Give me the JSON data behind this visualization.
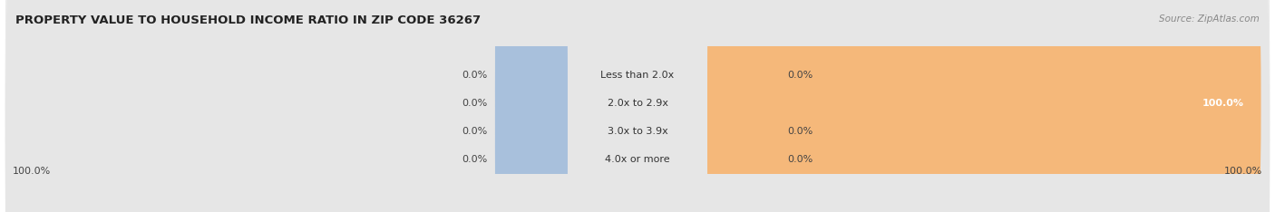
{
  "title": "PROPERTY VALUE TO HOUSEHOLD INCOME RATIO IN ZIP CODE 36267",
  "source": "Source: ZipAtlas.com",
  "categories": [
    "Less than 2.0x",
    "2.0x to 2.9x",
    "3.0x to 3.9x",
    "4.0x or more"
  ],
  "without_mortgage": [
    0.0,
    0.0,
    0.0,
    0.0
  ],
  "with_mortgage": [
    0.0,
    100.0,
    0.0,
    0.0
  ],
  "left_labels": [
    "0.0%",
    "0.0%",
    "0.0%",
    "0.0%"
  ],
  "right_labels": [
    "0.0%",
    "100.0%",
    "0.0%",
    "0.0%"
  ],
  "bottom_left": "100.0%",
  "bottom_right": "100.0%",
  "color_without": "#a8c0dc",
  "color_with": "#f5b87a",
  "row_bg_odd": "#f0f0f0",
  "row_bg_even": "#e6e6e6",
  "title_fontsize": 9.5,
  "source_fontsize": 7.5,
  "bar_label_fontsize": 8,
  "cat_label_fontsize": 8,
  "legend_fontsize": 8
}
